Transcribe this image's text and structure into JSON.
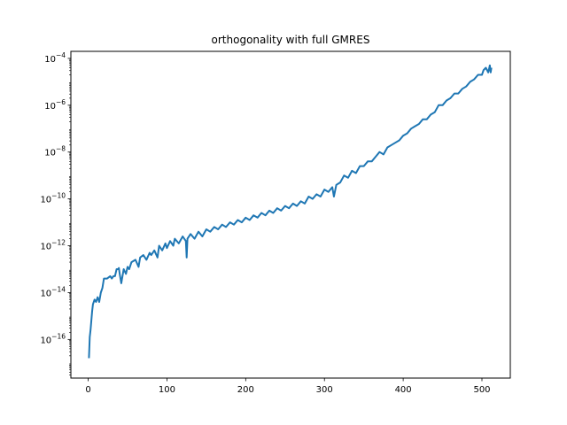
{
  "chart_data": {
    "type": "line",
    "title": "orthogonality with full GMRES",
    "xlabel": "",
    "ylabel": "",
    "xlim": [
      -22,
      536
    ],
    "ylim": [
      -17.65,
      -3.7
    ],
    "yscale": "log",
    "x_ticks": [
      0,
      100,
      200,
      300,
      400,
      500
    ],
    "y_ticks": [
      {
        "exp": -16,
        "label": "10",
        "sup": "−16"
      },
      {
        "exp": -14,
        "label": "10",
        "sup": "−14"
      },
      {
        "exp": -12,
        "label": "10",
        "sup": "−12"
      },
      {
        "exp": -10,
        "label": "10",
        "sup": "−10"
      },
      {
        "exp": -8,
        "label": "10",
        "sup": "−8"
      },
      {
        "exp": -6,
        "label": "10",
        "sup": "−6"
      },
      {
        "exp": -4,
        "label": "10",
        "sup": "−4"
      }
    ],
    "grid": false,
    "color": "#1f77b4",
    "series": [
      {
        "x": [
          1,
          2,
          3,
          4,
          5,
          6,
          8,
          10,
          12,
          14,
          16,
          18,
          20,
          24,
          28,
          30,
          32,
          34,
          36,
          38,
          39,
          40,
          42,
          45,
          48,
          50,
          52,
          55,
          60,
          64,
          66,
          70,
          74,
          78,
          80,
          84,
          88,
          90,
          94,
          98,
          100,
          104,
          108,
          110,
          115,
          120,
          124,
          125,
          126,
          130,
          135,
          140,
          145,
          150,
          155,
          160,
          165,
          170,
          175,
          180,
          185,
          190,
          195,
          200,
          205,
          210,
          215,
          220,
          225,
          230,
          235,
          240,
          245,
          250,
          255,
          260,
          265,
          270,
          275,
          280,
          285,
          290,
          295,
          300,
          305,
          310,
          312,
          315,
          320,
          325,
          330,
          335,
          340,
          345,
          350,
          355,
          360,
          365,
          370,
          375,
          380,
          385,
          390,
          395,
          400,
          405,
          410,
          415,
          420,
          425,
          430,
          435,
          440,
          445,
          450,
          455,
          460,
          465,
          470,
          475,
          480,
          485,
          490,
          495,
          500,
          502,
          505,
          508,
          510,
          511,
          512
        ],
        "y_log10": [
          -16.8,
          -15.9,
          -15.6,
          -15.2,
          -14.8,
          -14.5,
          -14.3,
          -14.4,
          -14.2,
          -14.4,
          -14.0,
          -13.8,
          -13.4,
          -13.4,
          -13.3,
          -13.4,
          -13.3,
          -13.3,
          -13.0,
          -13.0,
          -12.95,
          -13.2,
          -13.6,
          -13.0,
          -13.2,
          -12.9,
          -13.0,
          -12.7,
          -12.6,
          -12.9,
          -12.5,
          -12.4,
          -12.6,
          -12.3,
          -12.4,
          -12.2,
          -12.5,
          -12.0,
          -12.2,
          -11.9,
          -12.1,
          -11.8,
          -12.0,
          -11.7,
          -11.9,
          -11.6,
          -11.8,
          -12.5,
          -11.7,
          -11.5,
          -11.7,
          -11.4,
          -11.6,
          -11.3,
          -11.4,
          -11.2,
          -11.3,
          -11.1,
          -11.2,
          -11.0,
          -11.1,
          -10.9,
          -11.0,
          -10.8,
          -10.9,
          -10.7,
          -10.8,
          -10.6,
          -10.7,
          -10.5,
          -10.6,
          -10.4,
          -10.5,
          -10.3,
          -10.4,
          -10.2,
          -10.3,
          -10.1,
          -10.2,
          -9.9,
          -10.0,
          -9.8,
          -9.9,
          -9.6,
          -9.7,
          -9.5,
          -9.9,
          -9.4,
          -9.3,
          -9.0,
          -9.1,
          -8.8,
          -8.9,
          -8.6,
          -8.6,
          -8.4,
          -8.4,
          -8.2,
          -8.0,
          -8.1,
          -7.8,
          -7.7,
          -7.6,
          -7.5,
          -7.3,
          -7.2,
          -7.0,
          -6.9,
          -6.8,
          -6.6,
          -6.6,
          -6.4,
          -6.3,
          -6.0,
          -6.0,
          -5.8,
          -5.7,
          -5.5,
          -5.5,
          -5.3,
          -5.2,
          -5.0,
          -4.9,
          -4.7,
          -4.7,
          -4.5,
          -4.4,
          -4.6,
          -4.3,
          -4.6,
          -4.4
        ]
      }
    ]
  }
}
